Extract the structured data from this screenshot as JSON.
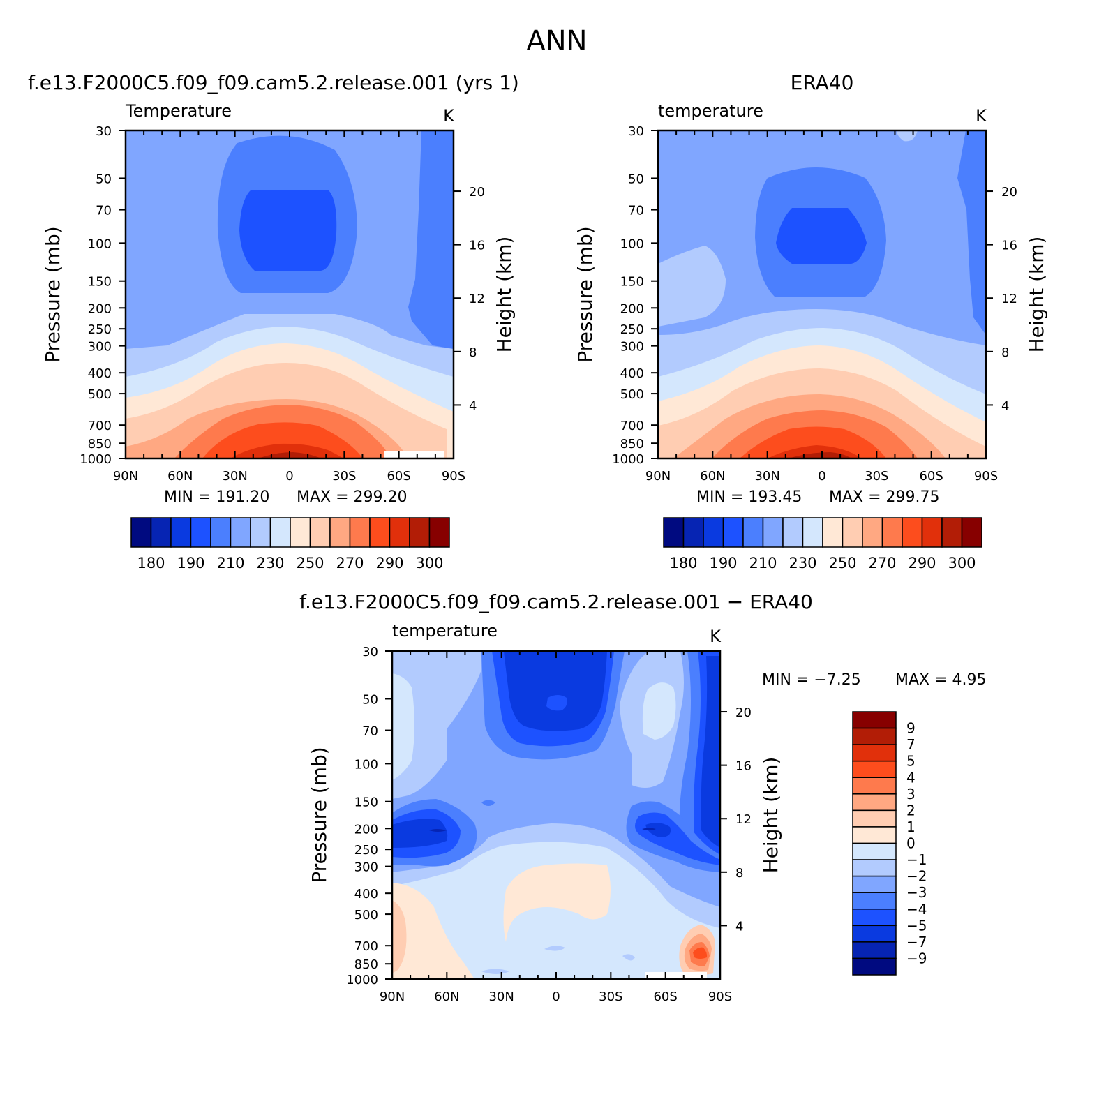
{
  "figure": {
    "title": "ANN"
  },
  "chart_data": [
    {
      "type": "heatmap",
      "panel_title": "f.e13.F2000C5.f09_f09.cam5.2.release.001 (yrs 1)",
      "variable": "Temperature",
      "units": "K",
      "ylabel": "Pressure (mb)",
      "ylabel_right": "Height (km)",
      "x_ticks": [
        "90N",
        "60N",
        "30N",
        "0",
        "30S",
        "60S",
        "90S"
      ],
      "y_ticks": [
        "30",
        "50",
        "70",
        "100",
        "150",
        "200",
        "250",
        "300",
        "400",
        "500",
        "700",
        "850",
        "1000"
      ],
      "height_ticks": [
        "20",
        "16",
        "12",
        "8",
        "4"
      ],
      "min_label": "MIN = 191.20",
      "max_label": "MAX = 299.20",
      "min": 191.2,
      "max": 299.2,
      "colorbar_labels": [
        "180",
        "190",
        "210",
        "230",
        "250",
        "270",
        "290",
        "300"
      ],
      "colorbar_colors": [
        "#000a80",
        "#0624b3",
        "#0a3ae0",
        "#1d52ff",
        "#4b7ffe",
        "#80a6ff",
        "#b2cbfe",
        "#d4e7fd",
        "#ffe8d6",
        "#ffcdb2",
        "#ffa882",
        "#fe7a4d",
        "#fd4d1d",
        "#e1300b",
        "#b21d06",
        "#870000"
      ],
      "levels_description": "warm tropical troposphere (~290-300 K near surface), cold tropical tropopause (~190 K near 70-100 mb)"
    },
    {
      "type": "heatmap",
      "panel_title": "ERA40",
      "variable": "temperature",
      "units": "K",
      "ylabel": "Pressure (mb)",
      "ylabel_right": "Height (km)",
      "x_ticks": [
        "90N",
        "60N",
        "30N",
        "0",
        "30S",
        "60S",
        "90S"
      ],
      "y_ticks": [
        "30",
        "50",
        "70",
        "100",
        "150",
        "200",
        "250",
        "300",
        "400",
        "500",
        "700",
        "850",
        "1000"
      ],
      "height_ticks": [
        "20",
        "16",
        "12",
        "8",
        "4"
      ],
      "min_label": "MIN = 193.45",
      "max_label": "MAX = 299.75",
      "min": 193.45,
      "max": 299.75,
      "colorbar_labels": [
        "180",
        "190",
        "210",
        "230",
        "250",
        "270",
        "290",
        "300"
      ],
      "colorbar_colors": [
        "#000a80",
        "#0624b3",
        "#0a3ae0",
        "#1d52ff",
        "#4b7ffe",
        "#80a6ff",
        "#b2cbfe",
        "#d4e7fd",
        "#ffe8d6",
        "#ffcdb2",
        "#ffa882",
        "#fe7a4d",
        "#fd4d1d",
        "#e1300b",
        "#b21d06",
        "#870000"
      ]
    },
    {
      "type": "heatmap",
      "panel_title": "f.e13.F2000C5.f09_f09.cam5.2.release.001 − ERA40",
      "variable": "temperature",
      "units": "K",
      "ylabel": "Pressure (mb)",
      "ylabel_right": "Height (km)",
      "x_ticks": [
        "90N",
        "60N",
        "30N",
        "0",
        "30S",
        "60S",
        "90S"
      ],
      "y_ticks": [
        "30",
        "50",
        "70",
        "100",
        "150",
        "200",
        "250",
        "300",
        "400",
        "500",
        "700",
        "850",
        "1000"
      ],
      "height_ticks": [
        "20",
        "16",
        "12",
        "8",
        "4"
      ],
      "min_label": "MIN = −7.25",
      "max_label": "MAX = 4.95",
      "min": -7.25,
      "max": 4.95,
      "colorbar_labels": [
        "9",
        "7",
        "5",
        "4",
        "3",
        "2",
        "1",
        "0",
        "−1",
        "−2",
        "−3",
        "−4",
        "−5",
        "−7",
        "−9"
      ],
      "colorbar_colors": [
        "#870000",
        "#b21d06",
        "#e1300b",
        "#fd4d1d",
        "#fe7a4d",
        "#ffa882",
        "#ffcdb2",
        "#ffe8d6",
        "#d4e7fd",
        "#b2cbfe",
        "#80a6ff",
        "#4b7ffe",
        "#1d52ff",
        "#0a3ae0",
        "#0624b3",
        "#000a80"
      ]
    }
  ]
}
